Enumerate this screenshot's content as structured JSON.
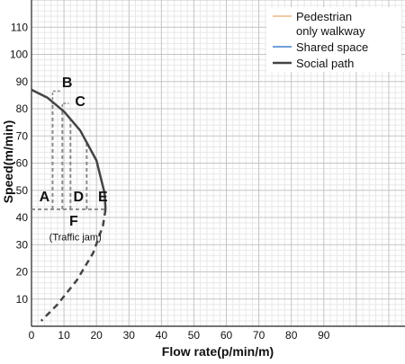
{
  "chart_data": {
    "type": "line",
    "xlabel": "Flow rate(p/min/m)",
    "ylabel": "Speed(m/min)",
    "xlim": [
      0,
      115
    ],
    "ylim": [
      0,
      120
    ],
    "x_ticks": [
      0,
      10,
      20,
      30,
      40,
      50,
      60,
      70,
      80,
      90
    ],
    "y_ticks": [
      10,
      20,
      30,
      40,
      50,
      60,
      70,
      80,
      90,
      100,
      110
    ],
    "grid": true,
    "legend": {
      "placement": "top-right"
    },
    "series": [
      {
        "name": "Pedestrian only walkway",
        "color": "#f2c9a0",
        "points": []
      },
      {
        "name": "Shared space",
        "color": "#6f9fd8",
        "points": []
      },
      {
        "name": "Social path",
        "color": "#444444",
        "points": [
          [
            0,
            87
          ],
          [
            5,
            84
          ],
          [
            10,
            79
          ],
          [
            15,
            72
          ],
          [
            20,
            61
          ],
          [
            22.5,
            49
          ],
          [
            22.8,
            43
          ]
        ],
        "dashed_points": [
          [
            22.8,
            43
          ],
          [
            22,
            37
          ],
          [
            19,
            27
          ],
          [
            14,
            17
          ],
          [
            8,
            8
          ],
          [
            3,
            2
          ]
        ]
      }
    ],
    "annotations": [
      {
        "id": "A",
        "text": "A"
      },
      {
        "id": "B",
        "text": "B"
      },
      {
        "id": "C",
        "text": "C"
      },
      {
        "id": "D",
        "text": "D"
      },
      {
        "id": "E",
        "text": "E"
      },
      {
        "id": "F",
        "text": "F"
      },
      {
        "id": "traffic",
        "text": "(Traffic jam)"
      }
    ],
    "reference_lines": {
      "horizontal_y": 43,
      "vertical_x": [
        6.5,
        9.5,
        12,
        17
      ]
    }
  }
}
